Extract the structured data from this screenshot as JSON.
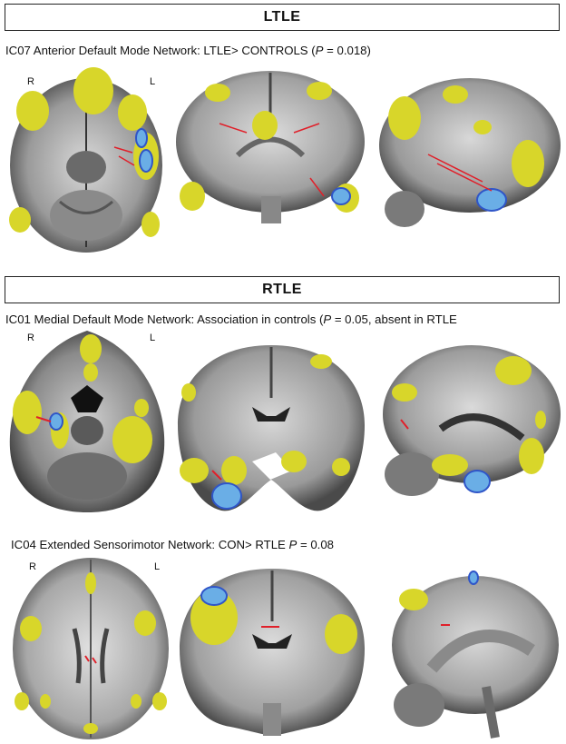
{
  "sections": [
    {
      "header": "LTLE",
      "caption_pre": "IC07 Anterior Default Mode Network: LTLE> CONTROLS (",
      "caption_p": "P",
      "caption_post": " = 0.018)",
      "orientation_right": "R",
      "orientation_left": "L"
    },
    {
      "header": "RTLE",
      "caption_pre": "IC01 Medial Default Mode Network: Association in controls (",
      "caption_p": "P",
      "caption_post": " = 0.05, absent in RTLE",
      "orientation_right": "R",
      "orientation_left": "L"
    },
    {
      "caption_pre": "IC04 Extended Sensorimotor Network: CON> RTLE ",
      "caption_p": "P",
      "caption_post": " = 0.08",
      "orientation_right": "R",
      "orientation_left": "L"
    }
  ],
  "colors": {
    "network": "#d8d62a",
    "cluster": "#6aaee6",
    "cluster_edge": "#2f55c8",
    "tract": "#e0202a",
    "brain_light": "#cfcfcf",
    "brain_dark": "#5a5a5a"
  }
}
